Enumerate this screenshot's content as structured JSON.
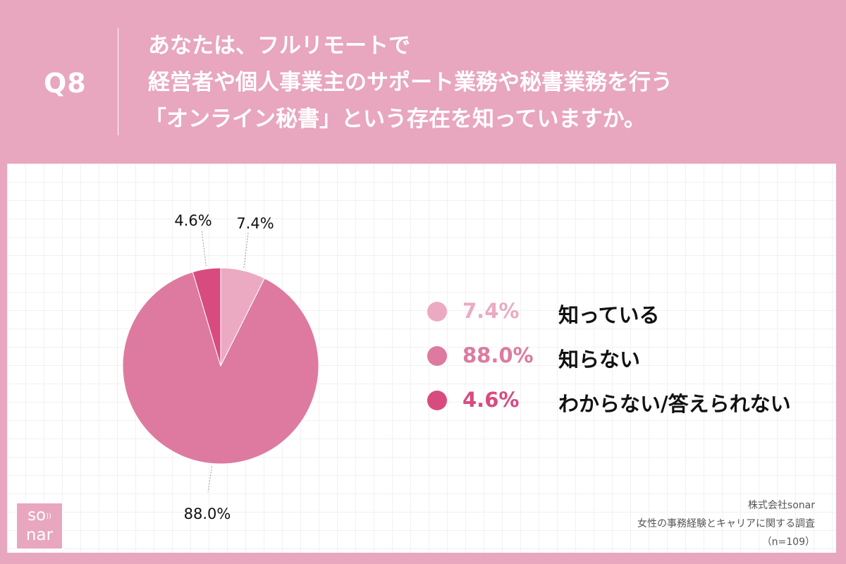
{
  "header": {
    "q_label": "Q8",
    "question_lines": [
      "あなたは、フルリモートで",
      "経営者や個人事業主のサポート業務や秘書業務を行う",
      "「オンライン秘書」という存在を知っていますか。"
    ]
  },
  "chart_data": {
    "type": "pie",
    "start": "12 o'clock, clockwise",
    "slices": [
      {
        "label": "知っている",
        "value": 7.4,
        "value_label": "7.4%",
        "color": "#ebaac2"
      },
      {
        "label": "知らない",
        "value": 88.0,
        "value_label": "88.0%",
        "color": "#de7a9f"
      },
      {
        "label": "わからない/答えられない",
        "value": 4.6,
        "value_label": "4.6%",
        "color": "#d84b7e"
      }
    ]
  },
  "legend": {
    "items": [
      {
        "value": "7.4%",
        "label": "知っている",
        "color": "#ebaac2"
      },
      {
        "value": "88.0%",
        "label": "知らない",
        "color": "#de7a9f"
      },
      {
        "value": "4.6%",
        "label": "わからない/答えられない",
        "color": "#d84b7e"
      }
    ]
  },
  "logo": {
    "top": "so",
    "bottom": "nar",
    "waves": "))"
  },
  "source": {
    "company": "株式会社sonar",
    "title": "女性の事務経験とキャリアに関する調査",
    "n": "（n=109）"
  },
  "colors": {
    "background": "#e8a6bf",
    "panel": "#ffffff"
  }
}
